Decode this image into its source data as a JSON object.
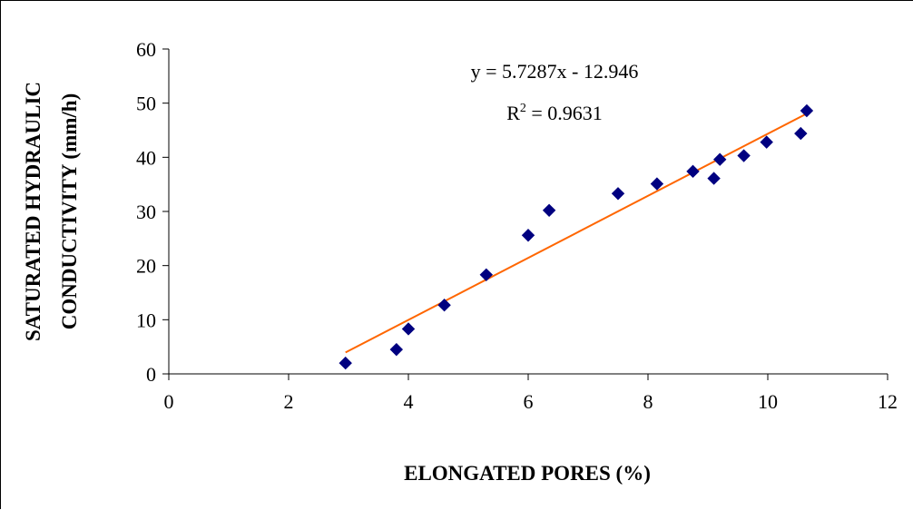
{
  "chart_data": {
    "type": "scatter",
    "xlabel": "ELONGATED PORES (%)",
    "ylabel_lines": [
      "SATURATED HYDRAULIC",
      "CONDUCTIVITY (mm/h)"
    ],
    "xlim": [
      0,
      12
    ],
    "ylim": [
      0,
      60
    ],
    "x_ticks": [
      "0",
      "2",
      "4",
      "6",
      "8",
      "10",
      "12"
    ],
    "y_ticks": [
      "0",
      "10",
      "20",
      "30",
      "40",
      "50",
      "60"
    ],
    "grid": false,
    "series": [
      {
        "marker": "diamond",
        "color": "#000080",
        "points": [
          [
            2.95,
            2.0
          ],
          [
            3.8,
            4.5
          ],
          [
            4.0,
            8.3
          ],
          [
            4.6,
            12.7
          ],
          [
            5.3,
            18.3
          ],
          [
            6.0,
            25.6
          ],
          [
            6.35,
            30.2
          ],
          [
            7.5,
            33.3
          ],
          [
            8.15,
            35.1
          ],
          [
            8.75,
            37.4
          ],
          [
            9.1,
            36.1
          ],
          [
            9.2,
            39.6
          ],
          [
            9.6,
            40.3
          ],
          [
            9.98,
            42.8
          ],
          [
            10.55,
            44.4
          ],
          [
            10.65,
            48.6
          ]
        ]
      }
    ],
    "trendline": {
      "color": "#ff6600",
      "slope": 5.7287,
      "intercept": -12.946,
      "x_range": [
        2.95,
        10.65
      ],
      "equation_text": "y = 5.7287x - 12.946",
      "r2_prefix": "R",
      "r2_exponent": "2",
      "r2_suffix": " = 0.9631"
    }
  }
}
